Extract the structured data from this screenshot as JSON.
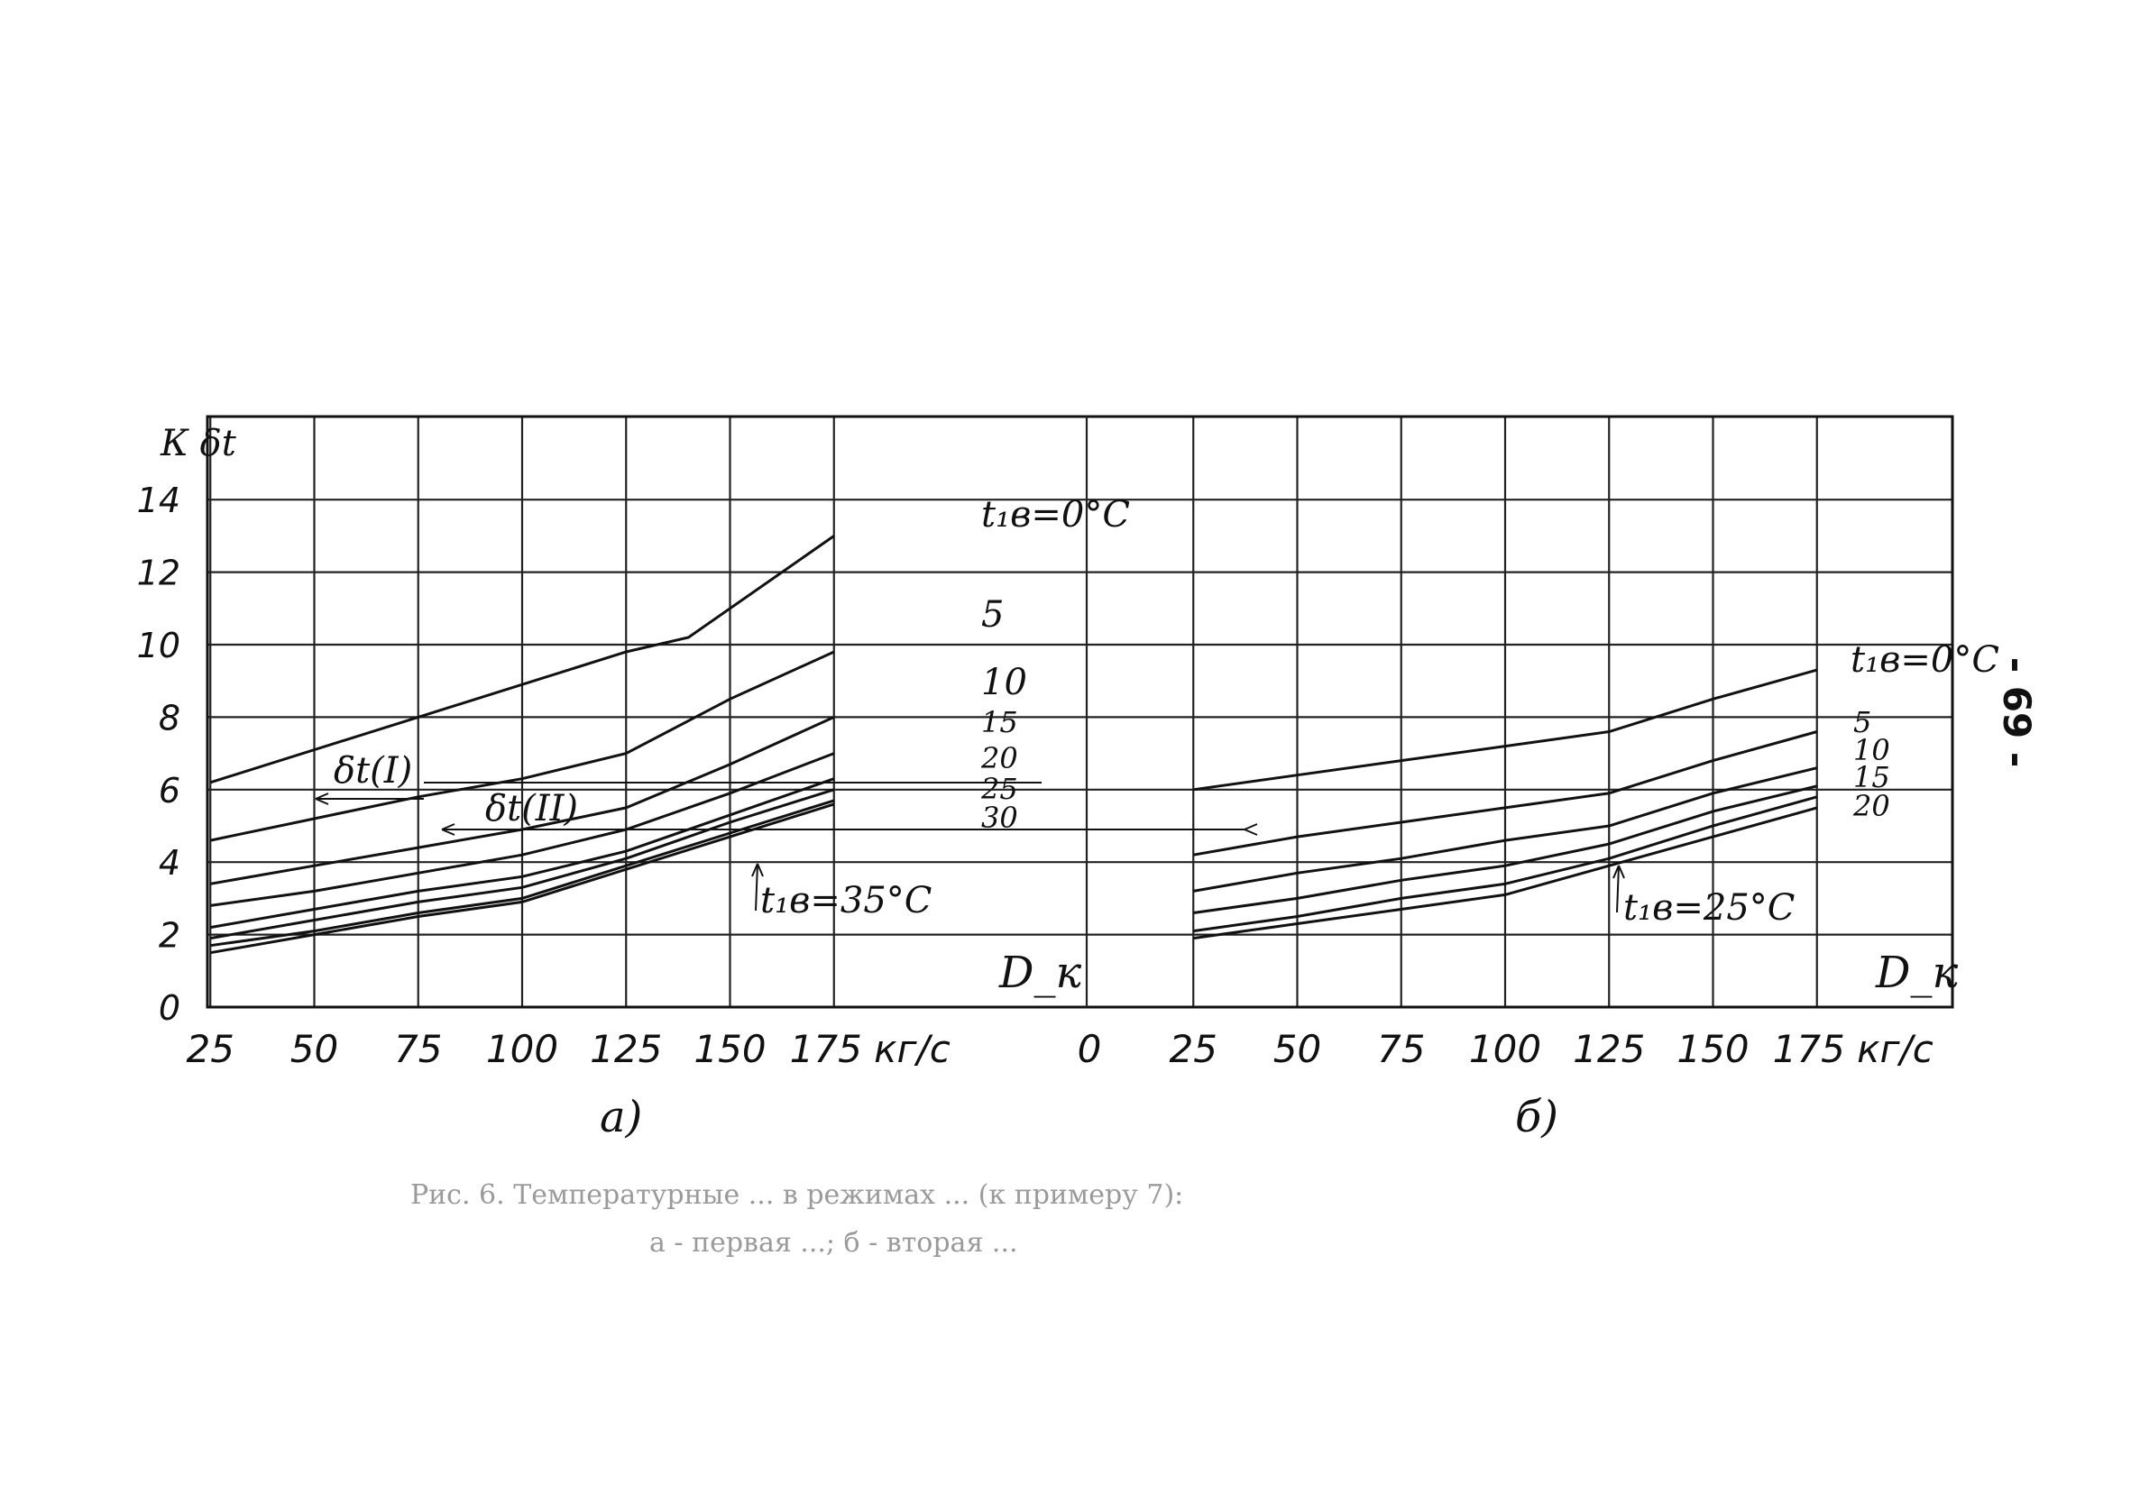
{
  "page_number": "- 69 -",
  "caption": {
    "line1": "Рис. 6. Температурные ... в режимах ... (к примеру 7):",
    "line2": "а - первая ...; б - вторая ..."
  },
  "chart_data": [
    {
      "type": "line",
      "panel_label": "а)",
      "ylabel": "К  δt",
      "xlabel": "D_к",
      "x_unit": "кг/с",
      "x_ticks": [
        25,
        50,
        75,
        100,
        125,
        150,
        175
      ],
      "x_tick_labels": [
        "25",
        "50",
        "75",
        "100",
        "125",
        "150",
        "175 кг/с"
      ],
      "y_ticks": [
        0,
        2,
        4,
        6,
        8,
        10,
        12,
        14
      ],
      "xlim": [
        0,
        187
      ],
      "ylim": [
        0,
        16
      ],
      "grid": true,
      "series": [
        {
          "name": "t₁в=0°С",
          "x": [
            25,
            75,
            125,
            140,
            175
          ],
          "y": [
            6.2,
            8.0,
            9.8,
            10.2,
            13.0
          ]
        },
        {
          "name": "5",
          "x": [
            25,
            50,
            75,
            100,
            125,
            150,
            175
          ],
          "y": [
            4.6,
            5.2,
            5.8,
            6.3,
            7.0,
            8.5,
            9.8
          ]
        },
        {
          "name": "10",
          "x": [
            25,
            50,
            75,
            100,
            125,
            150,
            175
          ],
          "y": [
            3.4,
            3.9,
            4.4,
            4.9,
            5.5,
            6.7,
            8.0
          ]
        },
        {
          "name": "15",
          "x": [
            25,
            50,
            75,
            100,
            125,
            150,
            175
          ],
          "y": [
            2.8,
            3.2,
            3.7,
            4.2,
            4.9,
            5.9,
            7.0
          ]
        },
        {
          "name": "20",
          "x": [
            25,
            50,
            75,
            100,
            125,
            150,
            175
          ],
          "y": [
            2.2,
            2.7,
            3.2,
            3.6,
            4.3,
            5.3,
            6.3
          ]
        },
        {
          "name": "25",
          "x": [
            25,
            50,
            75,
            100,
            125,
            150,
            175
          ],
          "y": [
            1.9,
            2.4,
            2.9,
            3.3,
            4.1,
            5.1,
            6.0
          ]
        },
        {
          "name": "30",
          "x": [
            25,
            50,
            75,
            100,
            125,
            150,
            175
          ],
          "y": [
            1.7,
            2.1,
            2.6,
            3.0,
            3.9,
            4.8,
            5.7
          ]
        },
        {
          "name": "t₁в=35°С",
          "x": [
            25,
            50,
            75,
            100,
            125,
            150,
            175
          ],
          "y": [
            1.5,
            2.0,
            2.5,
            2.9,
            3.8,
            4.7,
            5.6
          ]
        }
      ],
      "annotations": [
        "δt(I)",
        "δt(II)",
        "t₁в=35°С"
      ]
    },
    {
      "type": "line",
      "panel_label": "б)",
      "xlabel": "D_к",
      "x_unit": "кг/с",
      "x_ticks": [
        25,
        50,
        75,
        100,
        125,
        150,
        175
      ],
      "x_tick_labels": [
        "25",
        "50",
        "75",
        "100",
        "125",
        "150",
        "175 кг/с"
      ],
      "x_origin_label": "0",
      "xlim": [
        0,
        187
      ],
      "ylim": [
        0,
        16
      ],
      "grid": true,
      "series": [
        {
          "name": "t₁в=0°С",
          "x": [
            25,
            50,
            75,
            100,
            125,
            150,
            175
          ],
          "y": [
            6.0,
            6.4,
            6.8,
            7.2,
            7.6,
            8.5,
            9.3
          ]
        },
        {
          "name": "5",
          "x": [
            25,
            50,
            75,
            100,
            125,
            150,
            175
          ],
          "y": [
            4.2,
            4.7,
            5.1,
            5.5,
            5.9,
            6.8,
            7.6
          ]
        },
        {
          "name": "10",
          "x": [
            25,
            50,
            75,
            100,
            125,
            150,
            175
          ],
          "y": [
            3.2,
            3.7,
            4.1,
            4.6,
            5.0,
            5.9,
            6.6
          ]
        },
        {
          "name": "15",
          "x": [
            25,
            50,
            75,
            100,
            125,
            150,
            175
          ],
          "y": [
            2.6,
            3.0,
            3.5,
            3.9,
            4.5,
            5.4,
            6.1
          ]
        },
        {
          "name": "20",
          "x": [
            25,
            50,
            75,
            100,
            125,
            150,
            175
          ],
          "y": [
            2.1,
            2.5,
            3.0,
            3.4,
            4.1,
            5.0,
            5.8
          ]
        },
        {
          "name": "t₁в=25°С",
          "x": [
            25,
            50,
            75,
            100,
            125,
            150,
            175
          ],
          "y": [
            1.9,
            2.3,
            2.7,
            3.1,
            3.9,
            4.7,
            5.5
          ]
        }
      ],
      "annotations": [
        "t₁в=25°С"
      ]
    }
  ]
}
